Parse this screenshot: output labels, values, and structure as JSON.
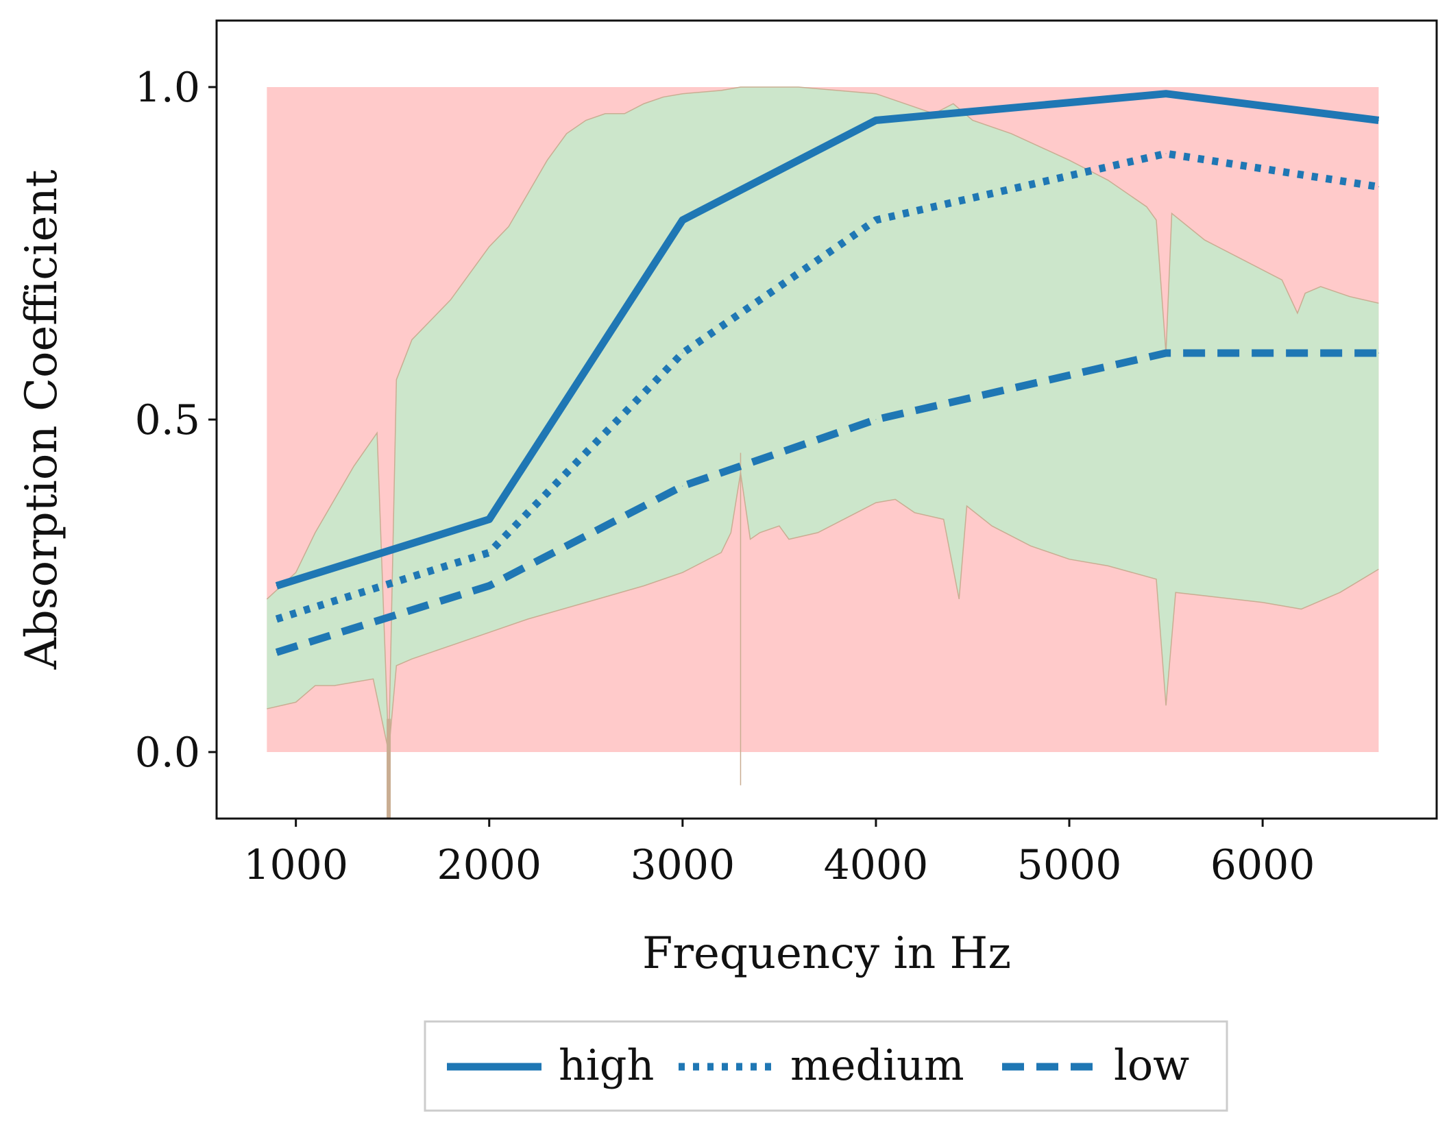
{
  "chart_data": {
    "type": "line",
    "title": "",
    "xlabel": "Frequency in Hz",
    "ylabel": "Absorption Coefficient",
    "xlim": [
      590,
      6900
    ],
    "ylim": [
      -0.1,
      1.1
    ],
    "xticks": [
      1000,
      2000,
      3000,
      4000,
      5000,
      6000
    ],
    "xtick_labels": [
      "1000",
      "2000",
      "3000",
      "4000",
      "5000",
      "6000"
    ],
    "yticks": [
      0.0,
      0.5,
      1.0
    ],
    "ytick_labels": [
      "0.0",
      "0.5",
      "1.0"
    ],
    "grid": false,
    "legend_position": "bottom-center",
    "background_band": {
      "x_range": [
        850,
        6600
      ],
      "y_range": [
        0.0,
        1.0
      ],
      "color": "#ffcaca"
    },
    "tolerance_band": {
      "color": "#cce6cb",
      "edge_color": "#c9ad92",
      "upper": [
        [
          850,
          0.23
        ],
        [
          1000,
          0.27
        ],
        [
          1100,
          0.33
        ],
        [
          1300,
          0.43
        ],
        [
          1420,
          0.48
        ],
        [
          1480,
          0.0
        ],
        [
          1520,
          0.56
        ],
        [
          1600,
          0.62
        ],
        [
          1800,
          0.68
        ],
        [
          1900,
          0.72
        ],
        [
          2000,
          0.76
        ],
        [
          2100,
          0.79
        ],
        [
          2200,
          0.84
        ],
        [
          2300,
          0.89
        ],
        [
          2400,
          0.93
        ],
        [
          2500,
          0.95
        ],
        [
          2600,
          0.96
        ],
        [
          2700,
          0.96
        ],
        [
          2800,
          0.975
        ],
        [
          2900,
          0.985
        ],
        [
          3000,
          0.99
        ],
        [
          3200,
          0.995
        ],
        [
          3300,
          1.0
        ],
        [
          3400,
          1.0
        ],
        [
          3600,
          1.0
        ],
        [
          3800,
          0.995
        ],
        [
          4000,
          0.99
        ],
        [
          4200,
          0.97
        ],
        [
          4300,
          0.96
        ],
        [
          4400,
          0.975
        ],
        [
          4500,
          0.95
        ],
        [
          4700,
          0.93
        ],
        [
          5000,
          0.89
        ],
        [
          5200,
          0.86
        ],
        [
          5400,
          0.82
        ],
        [
          5450,
          0.8
        ],
        [
          5500,
          0.6
        ],
        [
          5530,
          0.81
        ],
        [
          5700,
          0.77
        ],
        [
          5900,
          0.74
        ],
        [
          6100,
          0.71
        ],
        [
          6180,
          0.66
        ],
        [
          6220,
          0.69
        ],
        [
          6300,
          0.7
        ],
        [
          6450,
          0.685
        ],
        [
          6600,
          0.675
        ]
      ],
      "lower": [
        [
          850,
          0.065
        ],
        [
          1000,
          0.075
        ],
        [
          1100,
          0.1
        ],
        [
          1200,
          0.1
        ],
        [
          1300,
          0.105
        ],
        [
          1400,
          0.11
        ],
        [
          1480,
          0.0
        ],
        [
          1520,
          0.13
        ],
        [
          1600,
          0.14
        ],
        [
          1800,
          0.16
        ],
        [
          2000,
          0.18
        ],
        [
          2200,
          0.2
        ],
        [
          2500,
          0.225
        ],
        [
          2800,
          0.25
        ],
        [
          3000,
          0.27
        ],
        [
          3200,
          0.3
        ],
        [
          3250,
          0.33
        ],
        [
          3300,
          0.42
        ],
        [
          3350,
          0.32
        ],
        [
          3400,
          0.33
        ],
        [
          3500,
          0.34
        ],
        [
          3550,
          0.32
        ],
        [
          3700,
          0.33
        ],
        [
          3900,
          0.36
        ],
        [
          4000,
          0.375
        ],
        [
          4100,
          0.38
        ],
        [
          4200,
          0.36
        ],
        [
          4350,
          0.35
        ],
        [
          4430,
          0.23
        ],
        [
          4470,
          0.37
        ],
        [
          4600,
          0.34
        ],
        [
          4800,
          0.31
        ],
        [
          5000,
          0.29
        ],
        [
          5200,
          0.28
        ],
        [
          5450,
          0.26
        ],
        [
          5500,
          0.07
        ],
        [
          5550,
          0.24
        ],
        [
          5700,
          0.235
        ],
        [
          6000,
          0.225
        ],
        [
          6200,
          0.215
        ],
        [
          6400,
          0.24
        ],
        [
          6600,
          0.275
        ]
      ]
    },
    "series": [
      {
        "name": "high",
        "style": "solid",
        "color": "#1f77b4",
        "x": [
          900,
          2000,
          3000,
          4000,
          5500,
          6600
        ],
        "y": [
          0.25,
          0.35,
          0.8,
          0.95,
          0.99,
          0.95
        ]
      },
      {
        "name": "medium",
        "style": "dotted",
        "color": "#1f77b4",
        "x": [
          900,
          2000,
          3000,
          4000,
          5500,
          6600
        ],
        "y": [
          0.2,
          0.3,
          0.6,
          0.8,
          0.9,
          0.85
        ]
      },
      {
        "name": "low",
        "style": "dashed",
        "color": "#1f77b4",
        "x": [
          900,
          2000,
          3000,
          4000,
          5500,
          6600
        ],
        "y": [
          0.15,
          0.25,
          0.4,
          0.5,
          0.6,
          0.6
        ]
      }
    ]
  }
}
